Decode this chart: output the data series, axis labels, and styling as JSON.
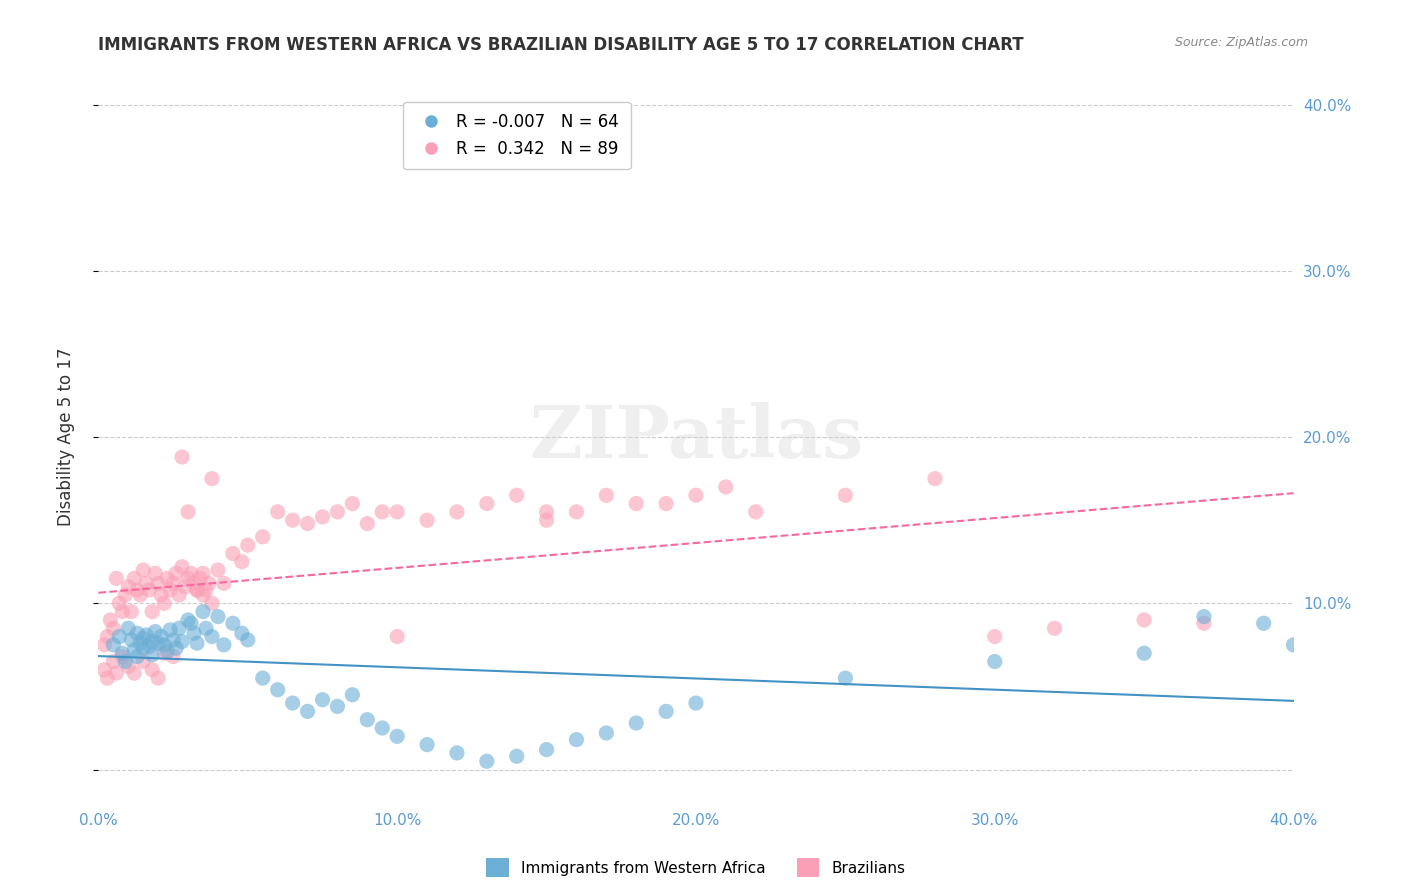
{
  "title": "IMMIGRANTS FROM WESTERN AFRICA VS BRAZILIAN DISABILITY AGE 5 TO 17 CORRELATION CHART",
  "source": "Source: ZipAtlas.com",
  "xlabel": "",
  "ylabel": "Disability Age 5 to 17",
  "xmin": 0.0,
  "xmax": 0.4,
  "ymin": -0.02,
  "ymax": 0.42,
  "yticks": [
    0.0,
    0.1,
    0.2,
    0.3,
    0.4
  ],
  "ytick_labels": [
    "",
    "10.0%",
    "20.0%",
    "30.0%",
    "40.0%"
  ],
  "xticks": [
    0.0,
    0.1,
    0.2,
    0.3,
    0.4
  ],
  "xtick_labels": [
    "0.0%",
    "10.0%",
    "20.0%",
    "30.0%",
    "40.0%"
  ],
  "blue_color": "#6baed6",
  "pink_color": "#fa9fb5",
  "blue_R": -0.007,
  "blue_N": 64,
  "pink_R": 0.342,
  "pink_N": 89,
  "legend_blue_label": "Immigrants from Western Africa",
  "legend_pink_label": "Brazilians",
  "watermark": "ZIPatlas",
  "blue_scatter_x": [
    0.005,
    0.007,
    0.008,
    0.009,
    0.01,
    0.011,
    0.012,
    0.013,
    0.013,
    0.014,
    0.015,
    0.015,
    0.016,
    0.017,
    0.018,
    0.018,
    0.019,
    0.02,
    0.021,
    0.022,
    0.023,
    0.024,
    0.025,
    0.026,
    0.027,
    0.028,
    0.03,
    0.031,
    0.032,
    0.033,
    0.035,
    0.036,
    0.038,
    0.04,
    0.042,
    0.045,
    0.048,
    0.05,
    0.055,
    0.06,
    0.065,
    0.07,
    0.075,
    0.08,
    0.085,
    0.09,
    0.095,
    0.1,
    0.11,
    0.12,
    0.13,
    0.14,
    0.15,
    0.16,
    0.17,
    0.18,
    0.19,
    0.2,
    0.25,
    0.3,
    0.35,
    0.37,
    0.39,
    0.4
  ],
  "blue_scatter_y": [
    0.075,
    0.08,
    0.07,
    0.065,
    0.085,
    0.078,
    0.072,
    0.082,
    0.068,
    0.076,
    0.079,
    0.073,
    0.081,
    0.074,
    0.077,
    0.069,
    0.083,
    0.076,
    0.08,
    0.075,
    0.071,
    0.084,
    0.078,
    0.073,
    0.085,
    0.077,
    0.09,
    0.088,
    0.082,
    0.076,
    0.095,
    0.085,
    0.08,
    0.092,
    0.075,
    0.088,
    0.082,
    0.078,
    0.055,
    0.048,
    0.04,
    0.035,
    0.042,
    0.038,
    0.045,
    0.03,
    0.025,
    0.02,
    0.015,
    0.01,
    0.005,
    0.008,
    0.012,
    0.018,
    0.022,
    0.028,
    0.035,
    0.04,
    0.055,
    0.065,
    0.07,
    0.092,
    0.088,
    0.075
  ],
  "pink_scatter_x": [
    0.002,
    0.003,
    0.004,
    0.005,
    0.006,
    0.007,
    0.008,
    0.009,
    0.01,
    0.011,
    0.012,
    0.013,
    0.014,
    0.015,
    0.016,
    0.017,
    0.018,
    0.019,
    0.02,
    0.021,
    0.022,
    0.023,
    0.024,
    0.025,
    0.026,
    0.027,
    0.028,
    0.029,
    0.03,
    0.031,
    0.032,
    0.033,
    0.034,
    0.035,
    0.036,
    0.037,
    0.038,
    0.04,
    0.042,
    0.045,
    0.048,
    0.05,
    0.055,
    0.06,
    0.065,
    0.07,
    0.075,
    0.08,
    0.085,
    0.09,
    0.095,
    0.1,
    0.11,
    0.12,
    0.13,
    0.14,
    0.15,
    0.16,
    0.17,
    0.18,
    0.19,
    0.2,
    0.21,
    0.22,
    0.25,
    0.28,
    0.3,
    0.32,
    0.35,
    0.37,
    0.002,
    0.003,
    0.005,
    0.006,
    0.008,
    0.01,
    0.012,
    0.015,
    0.018,
    0.02,
    0.022,
    0.025,
    0.028,
    0.03,
    0.033,
    0.035,
    0.038,
    0.1,
    0.15
  ],
  "pink_scatter_y": [
    0.075,
    0.08,
    0.09,
    0.085,
    0.115,
    0.1,
    0.095,
    0.105,
    0.11,
    0.095,
    0.115,
    0.108,
    0.105,
    0.12,
    0.112,
    0.108,
    0.095,
    0.118,
    0.112,
    0.105,
    0.1,
    0.115,
    0.108,
    0.112,
    0.118,
    0.105,
    0.122,
    0.11,
    0.115,
    0.118,
    0.112,
    0.108,
    0.115,
    0.118,
    0.108,
    0.112,
    0.175,
    0.12,
    0.112,
    0.13,
    0.125,
    0.135,
    0.14,
    0.155,
    0.15,
    0.148,
    0.152,
    0.155,
    0.16,
    0.148,
    0.155,
    0.155,
    0.15,
    0.155,
    0.16,
    0.165,
    0.15,
    0.155,
    0.165,
    0.16,
    0.16,
    0.165,
    0.17,
    0.155,
    0.165,
    0.175,
    0.08,
    0.085,
    0.09,
    0.088,
    0.06,
    0.055,
    0.065,
    0.058,
    0.068,
    0.062,
    0.058,
    0.065,
    0.06,
    0.055,
    0.07,
    0.068,
    0.188,
    0.155,
    0.108,
    0.105,
    0.1,
    0.08,
    0.155
  ]
}
